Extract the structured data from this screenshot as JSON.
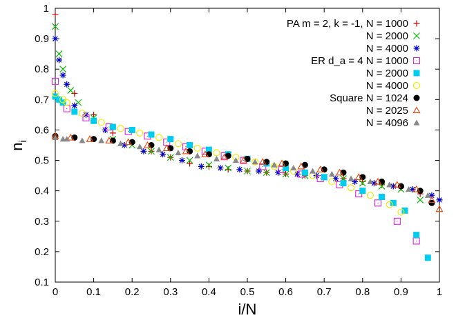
{
  "chart_data": {
    "type": "scatter",
    "title": "",
    "xlabel": "i/N",
    "ylabel": "n",
    "ylabel_subscript": "i",
    "xlim": [
      0,
      1
    ],
    "ylim": [
      0.1,
      1
    ],
    "xticks": [
      0,
      0.1,
      0.2,
      0.3,
      0.4,
      0.5,
      0.6,
      0.7,
      0.8,
      0.9,
      1
    ],
    "xtick_labels": [
      "0",
      "0.1",
      "0.2",
      "0.3",
      "0.4",
      "0.5",
      "0.6",
      "0.7",
      "0.8",
      "0.9",
      "1"
    ],
    "yticks": [
      0.1,
      0.2,
      0.3,
      0.4,
      0.5,
      0.6,
      0.7,
      0.8,
      0.9,
      1
    ],
    "ytick_labels": [
      "0.1",
      "0.2",
      "0.3",
      "0.4",
      "0.5",
      "0.6",
      "0.7",
      "0.8",
      "0.9",
      "1"
    ],
    "grid": false,
    "legend_position": "top-right",
    "series": [
      {
        "name": "PA m = 2, k = -1, N = 1000",
        "marker": "plus",
        "color": "#cc0000",
        "x": [
          0.0,
          0.05,
          0.1,
          0.15,
          0.2,
          0.25,
          0.3,
          0.35,
          0.4,
          0.45,
          0.5,
          0.55,
          0.6,
          0.65,
          0.7,
          0.75,
          0.8,
          0.85,
          0.9,
          0.95,
          1.0
        ],
        "y": [
          0.98,
          0.72,
          0.65,
          0.59,
          0.56,
          0.53,
          0.51,
          0.49,
          0.48,
          0.47,
          0.465,
          0.46,
          0.455,
          0.45,
          0.445,
          0.44,
          0.43,
          0.42,
          0.41,
          0.39,
          0.37
        ]
      },
      {
        "name": "N = 2000",
        "marker": "cross",
        "color": "#00bb00",
        "x": [
          0.0,
          0.01,
          0.02,
          0.04,
          0.06,
          0.1,
          0.15,
          0.2,
          0.25,
          0.3,
          0.35,
          0.4,
          0.45,
          0.5,
          0.55,
          0.6,
          0.65,
          0.7,
          0.75,
          0.8,
          0.85,
          0.9,
          0.95
        ],
        "y": [
          0.94,
          0.85,
          0.8,
          0.73,
          0.69,
          0.64,
          0.57,
          0.55,
          0.53,
          0.51,
          0.5,
          0.485,
          0.475,
          0.465,
          0.46,
          0.455,
          0.45,
          0.445,
          0.44,
          0.425,
          0.415,
          0.405,
          0.37
        ]
      },
      {
        "name": "N = 4000",
        "marker": "star",
        "color": "#0000cc",
        "x": [
          0.0,
          0.01,
          0.02,
          0.03,
          0.05,
          0.08,
          0.13,
          0.18,
          0.23,
          0.28,
          0.33,
          0.38,
          0.43,
          0.48,
          0.53,
          0.58,
          0.63,
          0.68,
          0.73,
          0.78,
          0.83,
          0.88,
          0.93,
          0.98,
          1.0
        ],
        "y": [
          0.9,
          0.83,
          0.78,
          0.75,
          0.68,
          0.65,
          0.6,
          0.55,
          0.53,
          0.52,
          0.5,
          0.48,
          0.475,
          0.47,
          0.465,
          0.46,
          0.455,
          0.45,
          0.44,
          0.43,
          0.425,
          0.415,
          0.405,
          0.385,
          0.37
        ]
      },
      {
        "name": "ER d_a = 4  N = 1000",
        "marker": "square-dot",
        "color": "#dd22dd",
        "x": [
          0.0,
          0.03,
          0.08,
          0.14,
          0.19,
          0.24,
          0.29,
          0.34,
          0.39,
          0.44,
          0.49,
          0.54,
          0.59,
          0.64,
          0.69,
          0.74,
          0.79,
          0.84,
          0.89,
          0.94
        ],
        "y": [
          0.76,
          0.67,
          0.64,
          0.61,
          0.595,
          0.58,
          0.56,
          0.545,
          0.53,
          0.515,
          0.5,
          0.48,
          0.47,
          0.455,
          0.44,
          0.42,
          0.39,
          0.36,
          0.3,
          0.235
        ]
      },
      {
        "name": "N = 2000",
        "marker": "square-filled",
        "color": "#00ccee",
        "x": [
          0.0,
          0.01,
          0.02,
          0.05,
          0.1,
          0.15,
          0.2,
          0.25,
          0.3,
          0.35,
          0.4,
          0.45,
          0.5,
          0.55,
          0.6,
          0.65,
          0.7,
          0.75,
          0.8,
          0.85,
          0.88,
          0.91,
          0.94,
          0.97
        ],
        "y": [
          0.71,
          0.7,
          0.69,
          0.66,
          0.63,
          0.61,
          0.6,
          0.585,
          0.57,
          0.55,
          0.535,
          0.52,
          0.505,
          0.49,
          0.475,
          0.46,
          0.445,
          0.425,
          0.4,
          0.38,
          0.36,
          0.335,
          0.255,
          0.18
        ]
      },
      {
        "name": "N = 4000",
        "marker": "circle-open",
        "color": "#eeee00",
        "x": [
          0.0,
          0.02,
          0.03,
          0.07,
          0.12,
          0.17,
          0.22,
          0.27,
          0.32,
          0.37,
          0.42,
          0.47,
          0.52,
          0.57,
          0.62,
          0.67,
          0.72,
          0.77,
          0.82,
          0.87,
          0.9
        ],
        "y": [
          0.72,
          0.7,
          0.69,
          0.655,
          0.625,
          0.605,
          0.59,
          0.575,
          0.555,
          0.54,
          0.525,
          0.51,
          0.495,
          0.48,
          0.465,
          0.45,
          0.43,
          0.41,
          0.385,
          0.355,
          0.33
        ]
      },
      {
        "name": "Square N = 1024",
        "marker": "circle-filled",
        "color": "#000000",
        "x": [
          0.0,
          0.05,
          0.1,
          0.15,
          0.2,
          0.25,
          0.3,
          0.35,
          0.4,
          0.45,
          0.5,
          0.55,
          0.6,
          0.65,
          0.7,
          0.75,
          0.8,
          0.85,
          0.9,
          0.95,
          0.98
        ],
        "y": [
          0.58,
          0.575,
          0.57,
          0.565,
          0.56,
          0.55,
          0.54,
          0.53,
          0.52,
          0.515,
          0.505,
          0.495,
          0.49,
          0.485,
          0.47,
          0.46,
          0.445,
          0.43,
          0.415,
          0.4,
          0.36
        ]
      },
      {
        "name": "N = 2025",
        "marker": "triangle-open",
        "color": "#ee4400",
        "x": [
          0.0,
          0.04,
          0.09,
          0.14,
          0.19,
          0.24,
          0.29,
          0.34,
          0.39,
          0.44,
          0.49,
          0.54,
          0.59,
          0.64,
          0.69,
          0.74,
          0.79,
          0.84,
          0.89,
          0.94,
          0.98,
          1.0
        ],
        "y": [
          0.58,
          0.575,
          0.57,
          0.565,
          0.56,
          0.55,
          0.54,
          0.53,
          0.52,
          0.51,
          0.5,
          0.495,
          0.49,
          0.48,
          0.47,
          0.46,
          0.445,
          0.43,
          0.42,
          0.405,
          0.37,
          0.34
        ]
      },
      {
        "name": "N = 4096",
        "marker": "triangle-filled",
        "color": "#888888",
        "x": [
          0.0,
          0.02,
          0.03,
          0.07,
          0.12,
          0.17,
          0.22,
          0.27,
          0.32,
          0.37,
          0.42,
          0.47,
          0.52,
          0.57,
          0.62,
          0.67,
          0.72,
          0.77,
          0.82,
          0.87,
          0.92,
          0.97
        ],
        "y": [
          0.575,
          0.57,
          0.57,
          0.565,
          0.565,
          0.555,
          0.545,
          0.535,
          0.525,
          0.515,
          0.505,
          0.5,
          0.495,
          0.485,
          0.475,
          0.465,
          0.455,
          0.44,
          0.43,
          0.42,
          0.405,
          0.385
        ]
      }
    ]
  }
}
